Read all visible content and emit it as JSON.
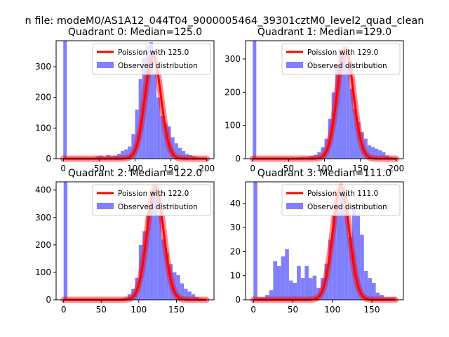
{
  "figure": {
    "suptitle": "n file: modeM0/AS1A12_044T04_9000005464_39301cztM0_level2_quad_clean"
  },
  "chart_data": [
    {
      "type": "histogram",
      "title": "Quadrant 0: Median=125.0",
      "xlim": [
        -10,
        210
      ],
      "ylim": [
        0,
        385
      ],
      "xticks": [
        0,
        50,
        100,
        150,
        200
      ],
      "yticks": [
        0,
        100,
        200,
        300
      ],
      "legend_position": "top-right",
      "series": [
        {
          "name": "Poission with 125.0",
          "kind": "line",
          "color": "#ff0000",
          "mean": 125.0,
          "peak": 335
        },
        {
          "name": "Observed distribution",
          "kind": "bars",
          "color": "#8080ff",
          "bin_edges": [
            0,
            5,
            10,
            15,
            20,
            25,
            30,
            35,
            40,
            45,
            50,
            55,
            60,
            65,
            70,
            75,
            80,
            85,
            90,
            95,
            100,
            105,
            110,
            115,
            120,
            125,
            130,
            135,
            140,
            145,
            150,
            155,
            160,
            165,
            170,
            175,
            180,
            185,
            190,
            195,
            200
          ],
          "counts": [
            385,
            3,
            3,
            3,
            3,
            3,
            3,
            3,
            3,
            8,
            10,
            6,
            12,
            8,
            10,
            16,
            25,
            30,
            40,
            80,
            160,
            260,
            330,
            370,
            380,
            280,
            200,
            140,
            115,
            105,
            70,
            50,
            35,
            25,
            15,
            12,
            8,
            5,
            3,
            2
          ]
        }
      ]
    },
    {
      "type": "histogram",
      "title": "Quadrant 1: Median=129.0",
      "xlim": [
        -10,
        210
      ],
      "ylim": [
        0,
        355
      ],
      "xticks": [
        0,
        50,
        100,
        150,
        200
      ],
      "yticks": [
        0,
        100,
        200,
        300
      ],
      "legend_position": "top-right",
      "series": [
        {
          "name": "Poission with 129.0",
          "kind": "line",
          "color": "#ff0000",
          "mean": 129.0,
          "peak": 330
        },
        {
          "name": "Observed distribution",
          "kind": "bars",
          "color": "#8080ff",
          "bin_edges": [
            0,
            5,
            10,
            15,
            20,
            25,
            30,
            35,
            40,
            45,
            50,
            55,
            60,
            65,
            70,
            75,
            80,
            85,
            90,
            95,
            100,
            105,
            110,
            115,
            120,
            125,
            130,
            135,
            140,
            145,
            150,
            155,
            160,
            165,
            170,
            175,
            180,
            185,
            190,
            195,
            200
          ],
          "counts": [
            355,
            3,
            3,
            3,
            3,
            3,
            3,
            3,
            3,
            3,
            3,
            3,
            3,
            5,
            5,
            6,
            8,
            12,
            20,
            35,
            60,
            120,
            200,
            280,
            330,
            320,
            280,
            210,
            150,
            110,
            80,
            60,
            40,
            35,
            30,
            25,
            20,
            10,
            5,
            3
          ]
        }
      ]
    },
    {
      "type": "histogram",
      "title": "Quadrant 2: Median=122.0",
      "xlim": [
        -10,
        200
      ],
      "ylim": [
        0,
        430
      ],
      "xticks": [
        0,
        50,
        100,
        150
      ],
      "yticks": [
        0,
        100,
        200,
        300,
        400
      ],
      "legend_position": "top-right",
      "series": [
        {
          "name": "Poission with 122.0",
          "kind": "line",
          "color": "#ff0000",
          "mean": 122.0,
          "peak": 410
        },
        {
          "name": "Observed distribution",
          "kind": "bars",
          "color": "#8080ff",
          "bin_edges": [
            0,
            5,
            10,
            15,
            20,
            25,
            30,
            35,
            40,
            45,
            50,
            55,
            60,
            65,
            70,
            75,
            80,
            85,
            90,
            95,
            100,
            105,
            110,
            115,
            120,
            125,
            130,
            135,
            140,
            145,
            150,
            155,
            160,
            165,
            170,
            175,
            180,
            185
          ],
          "counts": [
            430,
            3,
            3,
            3,
            3,
            3,
            3,
            3,
            3,
            3,
            3,
            3,
            3,
            3,
            3,
            5,
            8,
            20,
            40,
            80,
            200,
            250,
            320,
            400,
            380,
            310,
            220,
            170,
            130,
            100,
            90,
            60,
            40,
            30,
            20,
            10,
            5
          ]
        }
      ]
    },
    {
      "type": "histogram",
      "title": "Quadrant 3: Median=111.0",
      "xlim": [
        -10,
        190
      ],
      "ylim": [
        0,
        49
      ],
      "xticks": [
        0,
        50,
        100,
        150
      ],
      "yticks": [
        0,
        10,
        20,
        30,
        40
      ],
      "legend_position": "top-right",
      "series": [
        {
          "name": "Poission with 111.0",
          "kind": "line",
          "color": "#ff0000",
          "mean": 111.0,
          "peak": 47
        },
        {
          "name": "Observed distribution",
          "kind": "bars",
          "color": "#8080ff",
          "bin_edges": [
            0,
            5,
            10,
            15,
            20,
            25,
            30,
            35,
            40,
            45,
            50,
            55,
            60,
            65,
            70,
            75,
            80,
            85,
            90,
            95,
            100,
            105,
            110,
            115,
            120,
            125,
            130,
            135,
            140,
            145,
            150,
            155,
            160,
            165,
            170,
            175,
            180
          ],
          "counts": [
            49,
            1,
            1,
            2,
            4,
            16,
            14,
            18,
            21,
            8,
            7,
            14,
            9,
            14,
            9,
            10,
            5,
            9,
            15,
            25,
            35,
            40,
            45,
            38,
            26,
            40,
            35,
            27,
            12,
            9,
            7,
            3,
            2,
            1,
            1,
            1
          ]
        }
      ]
    }
  ]
}
